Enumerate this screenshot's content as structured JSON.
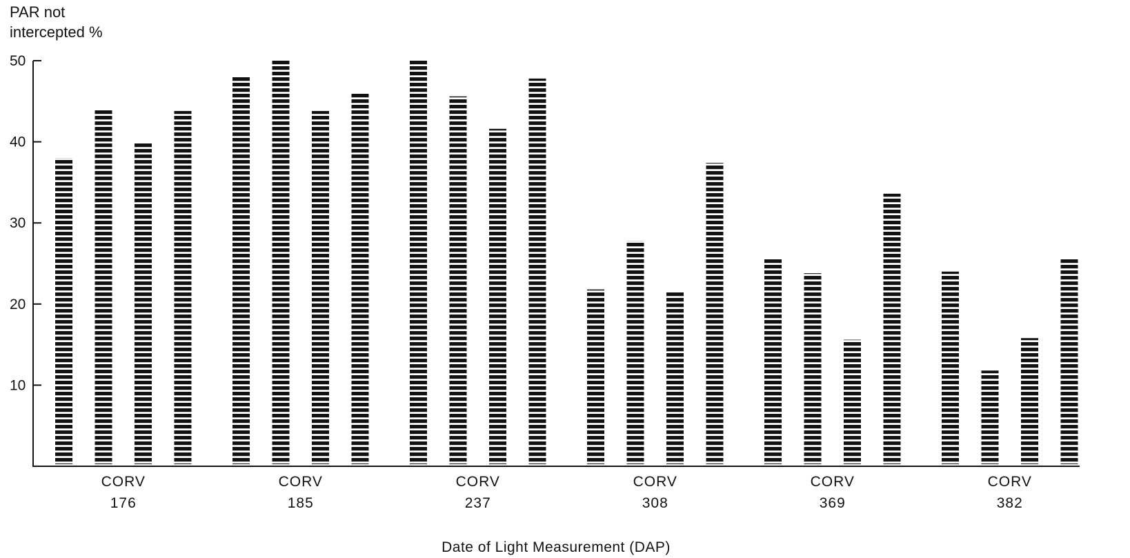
{
  "chart_data": {
    "type": "bar",
    "ylabel_line1": "PAR not",
    "ylabel_line2": "intercepted %",
    "xlabel": "Date of Light Measurement (DAP)",
    "ylim": [
      0,
      50
    ],
    "yticks": [
      10,
      20,
      30,
      40,
      50
    ],
    "grid": false,
    "legend": "none",
    "bar_pattern": "horizontal-dashes",
    "bar_color": "#111111",
    "categories": [
      {
        "line1": "CORV",
        "line2": "176",
        "values": [
          38,
          44,
          40,
          43.8
        ]
      },
      {
        "line1": "CORV",
        "line2": "185",
        "values": [
          48,
          50,
          43.8,
          46
        ]
      },
      {
        "line1": "CORV",
        "line2": "237",
        "values": [
          50,
          45.6,
          41.6,
          47.8
        ]
      },
      {
        "line1": "CORV",
        "line2": "308",
        "values": [
          21.8,
          27.8,
          21.6,
          37.4
        ]
      },
      {
        "line1": "CORV",
        "line2": "369",
        "values": [
          25.6,
          23.8,
          15.6,
          33.6
        ]
      },
      {
        "line1": "CORV",
        "line2": "382",
        "values": [
          24,
          11.8,
          15.8,
          25.6
        ]
      }
    ]
  }
}
